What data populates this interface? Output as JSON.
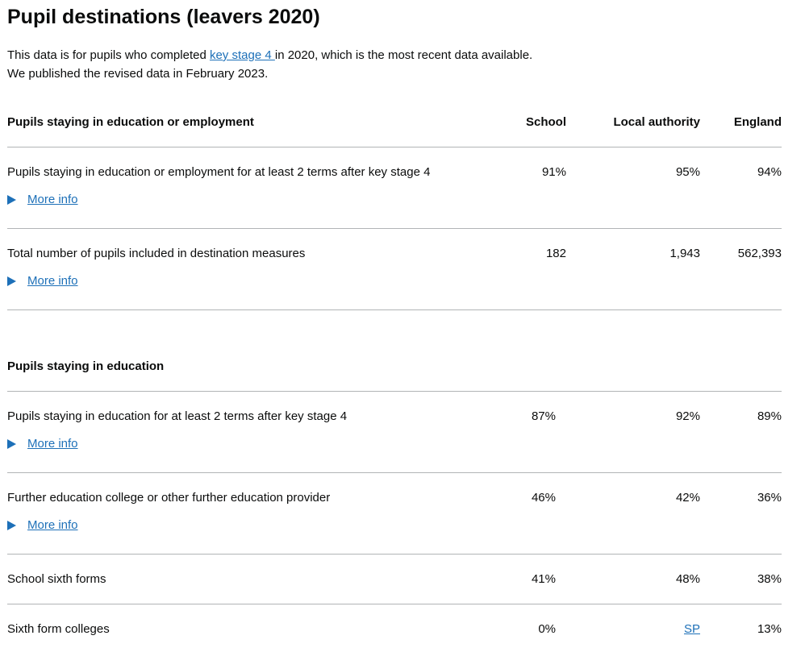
{
  "title": "Pupil destinations (leavers 2020)",
  "intro": {
    "before_link": "This data is for pupils who completed ",
    "link": "key stage 4 ",
    "after_link": "in 2020, which is the most recent data available.",
    "line2": "We published the revised data in February 2023."
  },
  "more_info_label": "More info",
  "section1": {
    "heading": "Pupils staying in education or employment",
    "col_school": "School",
    "col_la": "Local authority",
    "col_england": "England",
    "rows": [
      {
        "label": "Pupils staying in education or employment for at least 2 terms after key stage 4",
        "school": "91%",
        "la": "95%",
        "england": "94%"
      },
      {
        "label": "Total number of pupils included in destination measures",
        "school": "182",
        "la": "1,943",
        "england": "562,393"
      }
    ]
  },
  "section2": {
    "heading": "Pupils staying in education",
    "rows": [
      {
        "label": "Pupils staying in education for at least 2 terms after key stage 4",
        "school": "87%",
        "la": "92%",
        "england": "89%"
      },
      {
        "label": "Further education college or other further education provider",
        "school": "46%",
        "la": "42%",
        "england": "36%"
      },
      {
        "label": "School sixth forms",
        "school": "41%",
        "la": "48%",
        "england": "38%"
      },
      {
        "label": "Sixth form colleges",
        "school": "0%",
        "la": "SP",
        "england": "13%"
      }
    ]
  }
}
